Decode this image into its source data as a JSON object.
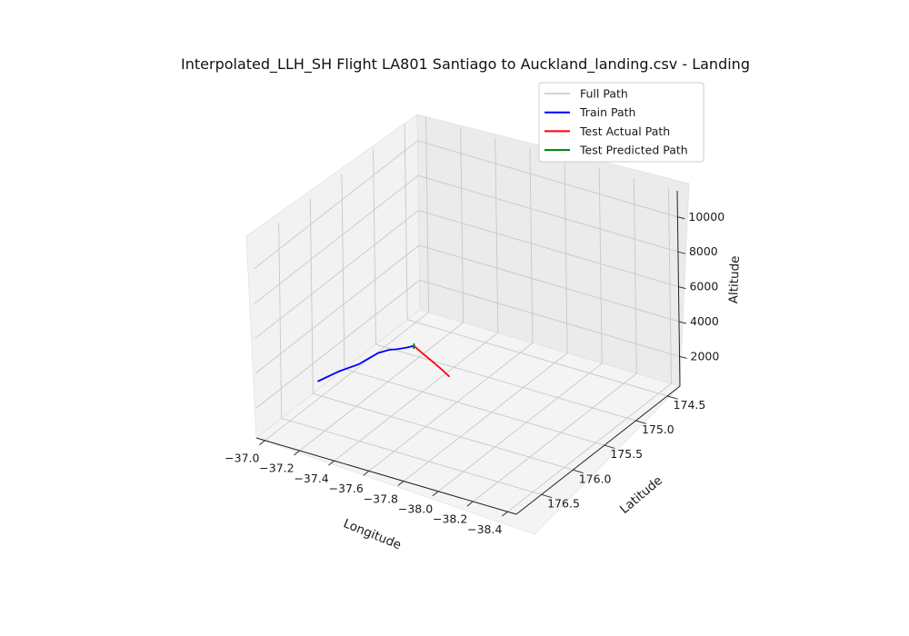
{
  "chart_data": {
    "type": "line",
    "projection": "3d",
    "title": "Interpolated_LLH_SH Flight LA801 Santiago to Auckland_landing.csv - Landing",
    "xlabel": "Longitude",
    "ylabel": "Latitude",
    "zlabel": "Altitude",
    "x_ticks": [
      "174.5",
      "175.0",
      "175.5",
      "176.0",
      "176.5"
    ],
    "y_ticks": [
      "−38.4",
      "−38.2",
      "−38.0",
      "−37.8",
      "−37.6",
      "−37.4",
      "−37.2",
      "−37.0"
    ],
    "z_ticks": [
      "2000",
      "4000",
      "6000",
      "8000",
      "10000"
    ],
    "xlim": [
      174.3,
      176.9
    ],
    "ylim": [
      -38.45,
      -36.95
    ],
    "zlim": [
      300,
      11500
    ],
    "grid": true,
    "legend_position": "upper-right",
    "series": [
      {
        "name": "Full Path",
        "color": "#d3d3d3",
        "points": []
      },
      {
        "name": "Train Path",
        "color": "#0000ff",
        "points": [
          [
            176.05,
            -37.0,
            1300
          ],
          [
            175.8,
            -37.03,
            1250
          ],
          [
            175.6,
            -37.07,
            1200
          ],
          [
            175.5,
            -37.09,
            1300
          ],
          [
            175.4,
            -37.11,
            1400
          ],
          [
            175.28,
            -37.13,
            1300
          ],
          [
            175.2,
            -37.145,
            1150
          ],
          [
            175.1,
            -37.16,
            1000
          ],
          [
            175.0,
            -37.17,
            850
          ]
        ]
      },
      {
        "name": "Test Actual Path",
        "color": "#ff0000",
        "points": [
          [
            175.0,
            -37.17,
            850
          ],
          [
            175.04,
            -37.23,
            750
          ],
          [
            175.08,
            -37.3,
            600
          ],
          [
            175.12,
            -37.37,
            450
          ],
          [
            175.16,
            -37.43,
            320
          ]
        ]
      },
      {
        "name": "Test Predicted Path",
        "color": "#008000",
        "points": [
          [
            174.97,
            -37.16,
            840
          ],
          [
            175.0,
            -37.17,
            850
          ],
          [
            175.03,
            -37.18,
            830
          ]
        ]
      }
    ]
  }
}
